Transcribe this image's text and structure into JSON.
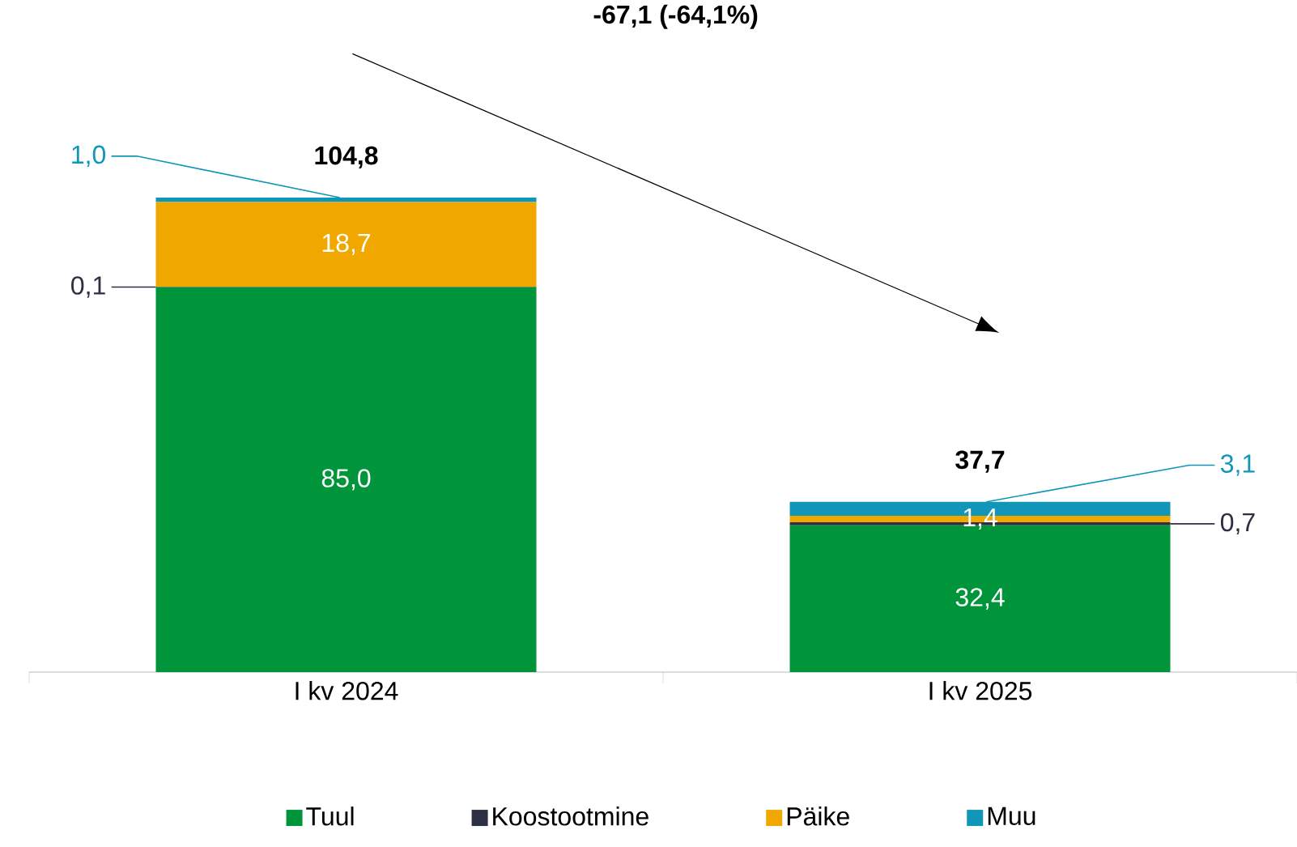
{
  "chart_data": {
    "type": "bar",
    "stacked": true,
    "categories": [
      "I kv 2024",
      "I kv 2025"
    ],
    "series": [
      {
        "name": "Tuul",
        "color": "#00953a",
        "values": [
          85.0,
          32.4
        ],
        "value_labels": [
          "85,0",
          "32,4"
        ]
      },
      {
        "name": "Koostootmine",
        "color": "#2d2f45",
        "values": [
          0.1,
          0.7
        ],
        "value_labels": [
          "0,1",
          "0,7"
        ]
      },
      {
        "name": "Päike",
        "color": "#f0a800",
        "values": [
          18.7,
          1.4
        ],
        "value_labels": [
          "18,7",
          "1,4"
        ]
      },
      {
        "name": "Muu",
        "color": "#1196b8",
        "values": [
          1.0,
          3.1
        ],
        "value_labels": [
          "1,0",
          "3,1"
        ]
      }
    ],
    "totals": [
      "104,8",
      "37,7"
    ],
    "annotations": [
      "-67,1 (-64,1%)"
    ],
    "legend": "bottom"
  }
}
